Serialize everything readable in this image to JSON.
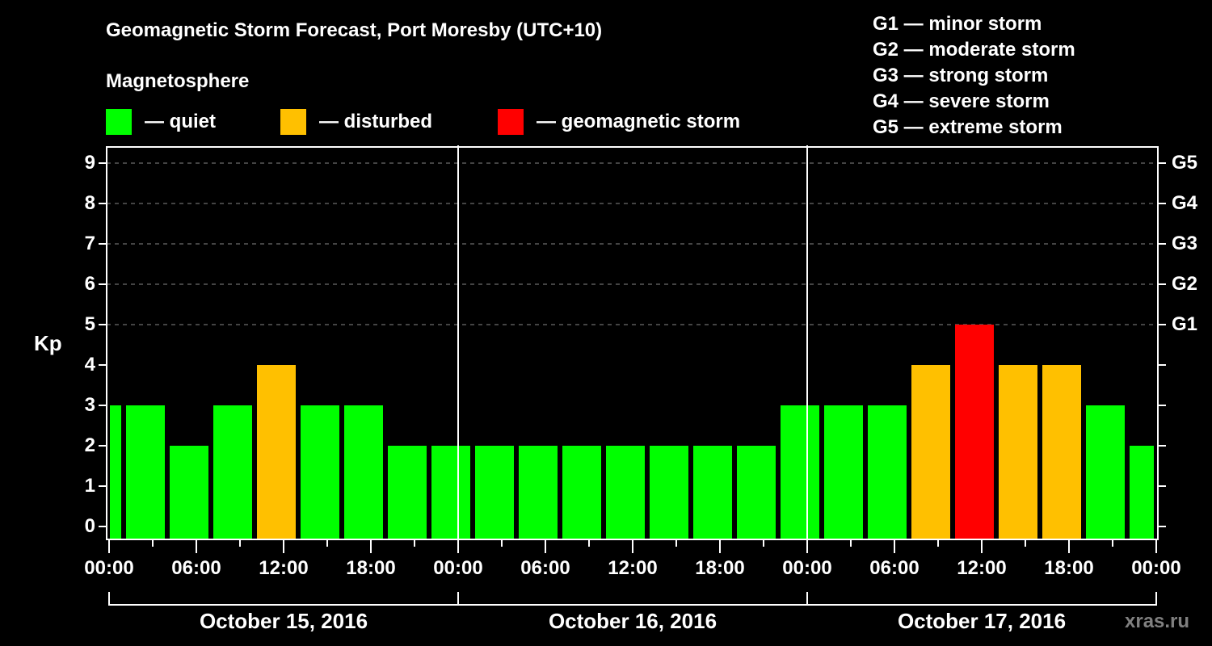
{
  "header": {
    "title": "Geomagnetic Storm Forecast, Port Moresby (UTC+10)",
    "subtitle": "Magnetosphere"
  },
  "legend": {
    "items": [
      {
        "label": "— quiet",
        "color": "#00ff00"
      },
      {
        "label": "— disturbed",
        "color": "#ffc000"
      },
      {
        "label": "— geomagnetic storm",
        "color": "#ff0000"
      }
    ]
  },
  "g_scale": {
    "items": [
      "G1 — minor storm",
      "G2 — moderate storm",
      "G3 — strong storm",
      "G4 — severe storm",
      "G5 — extreme storm"
    ]
  },
  "watermark": "xras.ru",
  "chart_data": {
    "type": "bar",
    "title": "Geomagnetic Storm Forecast, Port Moresby (UTC+10)",
    "subtitle": "Magnetosphere",
    "xlabel": "",
    "ylabel": "Kp",
    "ylim": [
      0,
      9
    ],
    "yticks": [
      "0",
      "1",
      "2",
      "3",
      "4",
      "5",
      "6",
      "7",
      "8",
      "9"
    ],
    "right_axis": {
      "ticks": [
        5,
        6,
        7,
        8,
        9
      ],
      "labels": [
        "G1",
        "G2",
        "G3",
        "G4",
        "G5"
      ]
    },
    "grid": "dashed horizontal at Kp 5–9",
    "xtick_labels": [
      "00:00",
      "06:00",
      "12:00",
      "18:00",
      "00:00",
      "06:00",
      "12:00",
      "18:00",
      "00:00",
      "06:00",
      "12:00",
      "18:00",
      "00:00"
    ],
    "days": [
      "October 15, 2016",
      "October 16, 2016",
      "October 17, 2016"
    ],
    "interval_hours": 3,
    "categories": [
      "Oct 14 21:00",
      "Oct 15 00:00",
      "Oct 15 03:00",
      "Oct 15 06:00",
      "Oct 15 09:00",
      "Oct 15 12:00",
      "Oct 15 15:00",
      "Oct 15 18:00",
      "Oct 15 21:00",
      "Oct 16 00:00",
      "Oct 16 03:00",
      "Oct 16 06:00",
      "Oct 16 09:00",
      "Oct 16 12:00",
      "Oct 16 15:00",
      "Oct 16 18:00",
      "Oct 16 21:00",
      "Oct 17 00:00",
      "Oct 17 03:00",
      "Oct 17 06:00",
      "Oct 17 09:00",
      "Oct 17 12:00",
      "Oct 17 15:00",
      "Oct 17 18:00",
      "Oct 17 21:00"
    ],
    "values": [
      3,
      3,
      2,
      3,
      4,
      3,
      3,
      2,
      2,
      2,
      2,
      2,
      2,
      2,
      2,
      2,
      3,
      3,
      3,
      4,
      5,
      4,
      4,
      3,
      2
    ],
    "status": [
      "quiet",
      "quiet",
      "quiet",
      "quiet",
      "disturbed",
      "quiet",
      "quiet",
      "quiet",
      "quiet",
      "quiet",
      "quiet",
      "quiet",
      "quiet",
      "quiet",
      "quiet",
      "quiet",
      "quiet",
      "quiet",
      "quiet",
      "disturbed",
      "storm",
      "disturbed",
      "disturbed",
      "quiet",
      "quiet"
    ],
    "colors": {
      "quiet": "#00ff00",
      "disturbed": "#ffc000",
      "storm": "#ff0000"
    },
    "legend": [
      "quiet",
      "disturbed",
      "geomagnetic storm"
    ]
  }
}
